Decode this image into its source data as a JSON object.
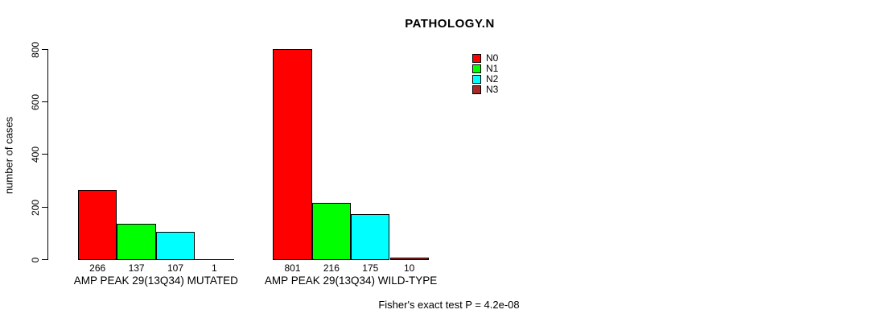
{
  "chart_data": {
    "type": "bar",
    "title": "PATHOLOGY.N",
    "ylabel": "number of cases",
    "xlabel": "",
    "ylim": [
      0,
      800
    ],
    "yticks": [
      0,
      200,
      400,
      600,
      800
    ],
    "grid": false,
    "legend_position": "top-right",
    "categories": [
      "AMP PEAK 29(13Q34) MUTATED",
      "AMP PEAK 29(13Q34) WILD-TYPE"
    ],
    "series": [
      {
        "name": "N0",
        "color": "#FF0000",
        "values": [
          266,
          801
        ]
      },
      {
        "name": "N1",
        "color": "#00FF00",
        "values": [
          137,
          216
        ]
      },
      {
        "name": "N2",
        "color": "#00FFFF",
        "values": [
          107,
          175
        ]
      },
      {
        "name": "N3",
        "color": "#A52A2A",
        "values": [
          1,
          10
        ]
      }
    ],
    "bar_value_labels": [
      [
        "266",
        "137",
        "107",
        "1"
      ],
      [
        "801",
        "216",
        "175",
        "10"
      ]
    ],
    "annotation": "Fisher's exact test P = 4.2e-08"
  }
}
